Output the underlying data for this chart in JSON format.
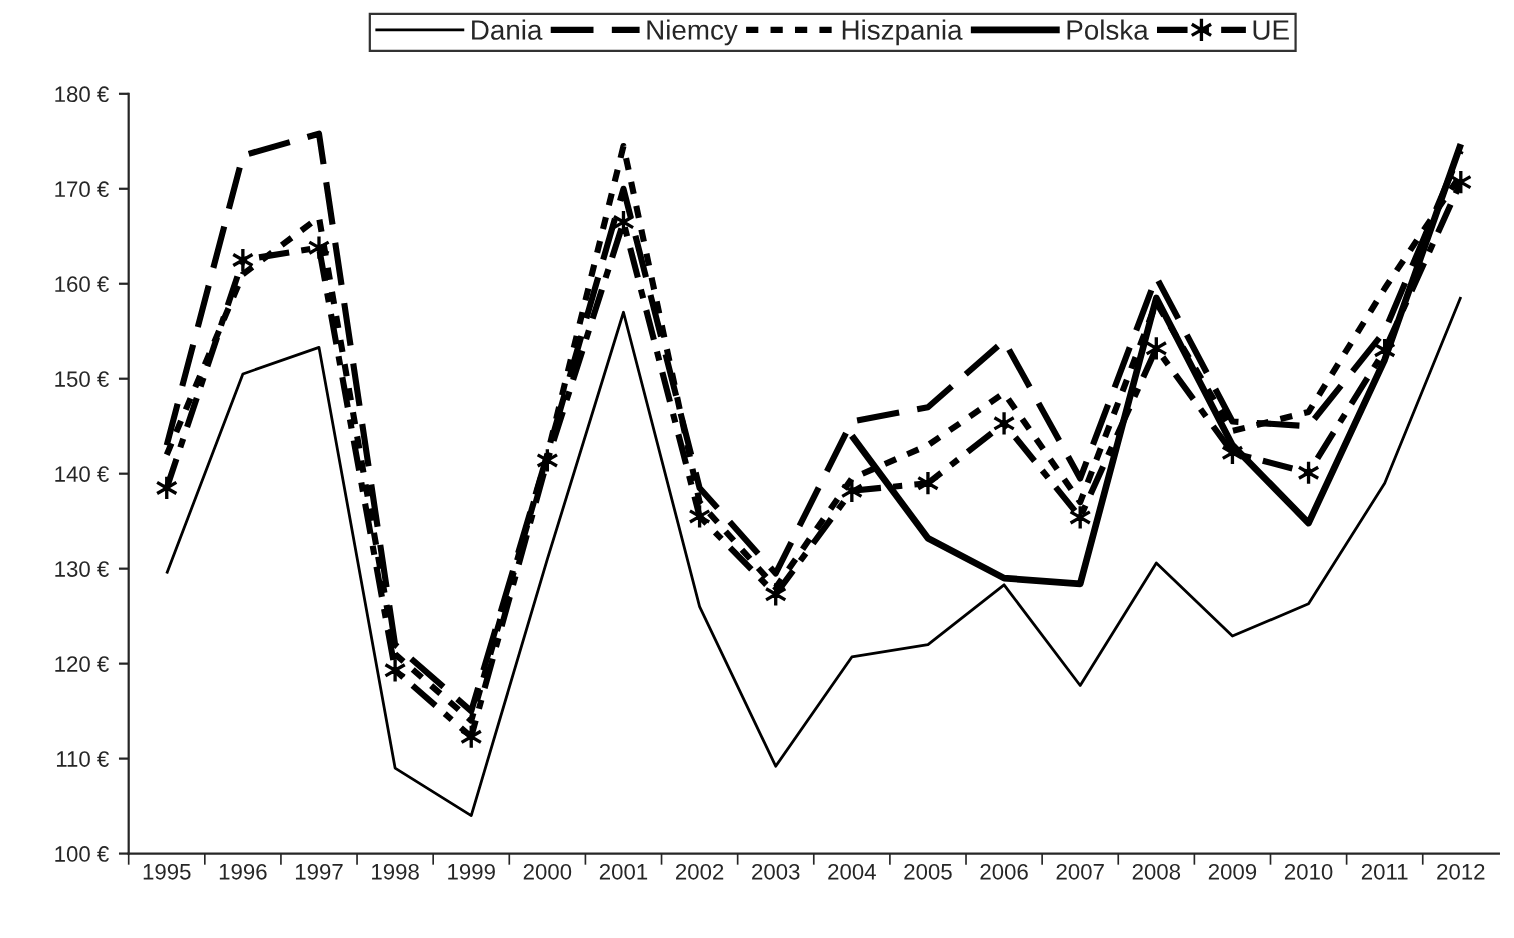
{
  "chart_data": {
    "type": "line",
    "categories": [
      "1995",
      "1996",
      "1997",
      "1998",
      "1999",
      "2000",
      "2001",
      "2002",
      "2003",
      "2004",
      "2005",
      "2006",
      "2007",
      "2008",
      "2009",
      "2010",
      "2011",
      "2012"
    ],
    "series": [
      {
        "name": "Dania",
        "color": "#000000",
        "line_style": "solid",
        "marker": "none",
        "values": [
          129.5,
          150.5,
          153.3,
          109,
          104,
          131,
          157,
          126,
          109.2,
          120.7,
          122,
          128.3,
          117.7,
          130.6,
          122.9,
          126.3,
          139,
          158.6
        ]
      },
      {
        "name": "Niemcy",
        "color": "#000000",
        "line_style": "dashed",
        "marker": "none",
        "values": [
          143,
          173.5,
          175.8,
          122,
          115,
          142,
          170,
          138.5,
          129.5,
          145.5,
          147,
          154,
          139.5,
          160.7,
          145.5,
          145,
          155,
          174
        ]
      },
      {
        "name": "Hiszpania",
        "color": "#000000",
        "line_style": "dotted",
        "marker": "none",
        "values": [
          142,
          161,
          167,
          121,
          114,
          142,
          174.5,
          137,
          128,
          139.5,
          143,
          148.5,
          137,
          158,
          144.5,
          146.5,
          159.5,
          171.5
        ]
      },
      {
        "name": "Polska",
        "color": "#000000",
        "line_style": "solid",
        "marker": "none",
        "values": [
          null,
          null,
          null,
          null,
          null,
          null,
          null,
          null,
          null,
          144,
          133.2,
          129,
          128.4,
          158.5,
          143,
          134.8,
          152,
          174.7
        ]
      },
      {
        "name": "UE",
        "color": "#000000",
        "line_style": "dashdot",
        "marker": "cross",
        "values": [
          138.5,
          162.5,
          163.8,
          119.3,
          112.3,
          141.4,
          166.5,
          135.5,
          127.3,
          138.2,
          139,
          145.3,
          135.4,
          153.2,
          142.2,
          140.1,
          153,
          170.7
        ]
      }
    ],
    "ylim": [
      100,
      180
    ],
    "yticks": [
      {
        "value": 100,
        "label": "100 €"
      },
      {
        "value": 110,
        "label": "110 €"
      },
      {
        "value": 120,
        "label": "120 €"
      },
      {
        "value": 130,
        "label": "130 €"
      },
      {
        "value": 140,
        "label": "140 €"
      },
      {
        "value": 150,
        "label": "150 €"
      },
      {
        "value": 160,
        "label": "160 €"
      },
      {
        "value": 170,
        "label": "170 €"
      },
      {
        "value": 180,
        "label": "180 €"
      }
    ],
    "grid": false,
    "legend": "top"
  }
}
